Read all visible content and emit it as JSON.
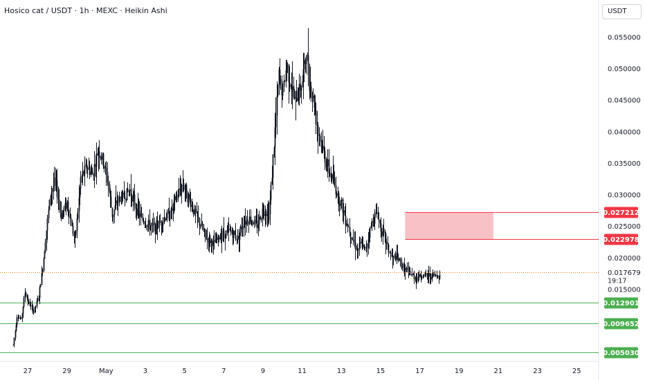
{
  "header": {
    "title": "Hosico cat / USDT · 1h · MEXC · Heikin Ashi"
  },
  "currency_button": {
    "label": "USDT"
  },
  "colors": {
    "candle": "#131722",
    "support_line": "#4caf50",
    "support_tag": "#4caf50",
    "resistance_line": "#f23645",
    "resistance_tag": "#f23645",
    "zone_fill": "#f7c1c6",
    "current_price_line": "#f57c00"
  },
  "chart_data": {
    "type": "candlestick",
    "title": "Hosico cat / USDT · 1h · MEXC · Heikin Ashi",
    "ylim": [
      0.0036,
      0.0609
    ],
    "y_ticks": [
      "0.055000",
      "0.050000",
      "0.045000",
      "0.040000",
      "0.035000",
      "0.030000",
      "0.025000",
      "0.020000",
      "0.015000"
    ],
    "x_ticks": [
      "27",
      "29",
      "May",
      "3",
      "5",
      "7",
      "9",
      "11",
      "13",
      "15",
      "17",
      "19",
      "21",
      "23",
      "25"
    ],
    "x_tick_day_index": [
      0,
      2,
      4,
      6,
      8,
      10,
      12,
      14,
      16,
      18,
      20,
      22,
      24,
      26,
      28
    ],
    "series_day_range": [
      -0.75,
      21.05
    ],
    "path_points": [
      [
        -0.75,
        0.0062
      ],
      [
        -0.55,
        0.0108
      ],
      [
        -0.35,
        0.0102
      ],
      [
        -0.15,
        0.0145
      ],
      [
        0.05,
        0.0128
      ],
      [
        0.3,
        0.0115
      ],
      [
        0.55,
        0.0138
      ],
      [
        0.75,
        0.0185
      ],
      [
        0.95,
        0.0245
      ],
      [
        1.15,
        0.0302
      ],
      [
        1.4,
        0.0322
      ],
      [
        1.7,
        0.0268
      ],
      [
        2.0,
        0.0288
      ],
      [
        2.2,
        0.0255
      ],
      [
        2.4,
        0.0228
      ],
      [
        2.7,
        0.0325
      ],
      [
        3.0,
        0.0345
      ],
      [
        3.3,
        0.0332
      ],
      [
        3.6,
        0.0372
      ],
      [
        3.85,
        0.0351
      ],
      [
        4.1,
        0.0318
      ],
      [
        4.3,
        0.0268
      ],
      [
        4.6,
        0.0292
      ],
      [
        4.9,
        0.0298
      ],
      [
        5.2,
        0.0308
      ],
      [
        5.5,
        0.0282
      ],
      [
        5.8,
        0.0262
      ],
      [
        6.1,
        0.0252
      ],
      [
        6.5,
        0.0248
      ],
      [
        6.9,
        0.0262
      ],
      [
        7.3,
        0.0272
      ],
      [
        7.6,
        0.0298
      ],
      [
        7.9,
        0.0318
      ],
      [
        8.2,
        0.0295
      ],
      [
        8.5,
        0.0272
      ],
      [
        8.8,
        0.0252
      ],
      [
        9.1,
        0.0232
      ],
      [
        9.5,
        0.0222
      ],
      [
        9.9,
        0.0238
      ],
      [
        10.3,
        0.0242
      ],
      [
        10.7,
        0.0232
      ],
      [
        11.0,
        0.0258
      ],
      [
        11.3,
        0.0262
      ],
      [
        11.7,
        0.0252
      ],
      [
        12.0,
        0.0278
      ],
      [
        12.3,
        0.0268
      ],
      [
        12.6,
        0.0402
      ],
      [
        12.8,
        0.0488
      ],
      [
        13.0,
        0.0462
      ],
      [
        13.2,
        0.0508
      ],
      [
        13.4,
        0.0478
      ],
      [
        13.6,
        0.0448
      ],
      [
        13.8,
        0.0462
      ],
      [
        14.0,
        0.0482
      ],
      [
        14.2,
        0.0522
      ],
      [
        14.4,
        0.0472
      ],
      [
        14.6,
        0.0445
      ],
      [
        14.8,
        0.0402
      ],
      [
        15.0,
        0.0378
      ],
      [
        15.2,
        0.0352
      ],
      [
        15.4,
        0.0335
      ],
      [
        15.6,
        0.032
      ],
      [
        15.8,
        0.0298
      ],
      [
        16.0,
        0.0285
      ],
      [
        16.2,
        0.0262
      ],
      [
        16.4,
        0.0245
      ],
      [
        16.6,
        0.0228
      ],
      [
        16.8,
        0.0212
      ],
      [
        17.0,
        0.0222
      ],
      [
        17.2,
        0.0212
      ],
      [
        17.4,
        0.0238
      ],
      [
        17.6,
        0.0262
      ],
      [
        17.8,
        0.0272
      ],
      [
        18.0,
        0.0248
      ],
      [
        18.2,
        0.0232
      ],
      [
        18.4,
        0.0212
      ],
      [
        18.6,
        0.0198
      ],
      [
        18.8,
        0.0202
      ],
      [
        19.0,
        0.0192
      ],
      [
        19.2,
        0.0182
      ],
      [
        19.4,
        0.0178
      ],
      [
        19.6,
        0.0172
      ],
      [
        19.8,
        0.0168
      ],
      [
        20.0,
        0.0172
      ]
    ],
    "horizontal_levels": [
      {
        "label": "0.027212",
        "value": 0.027212,
        "kind": "resistance"
      },
      {
        "label": "0.022978",
        "value": 0.022978,
        "kind": "resistance"
      },
      {
        "label": "0.012901",
        "value": 0.012901,
        "kind": "support"
      },
      {
        "label": "0.009652",
        "value": 0.009652,
        "kind": "support"
      },
      {
        "label": "0.005030",
        "value": 0.00503,
        "kind": "support"
      }
    ],
    "zone": {
      "y_top": 0.027212,
      "y_bottom": 0.022978,
      "day_start": 19.25,
      "day_end": 23.75
    },
    "current_price": {
      "label": "0.017679",
      "value": 0.017679,
      "countdown": "19:17"
    }
  }
}
